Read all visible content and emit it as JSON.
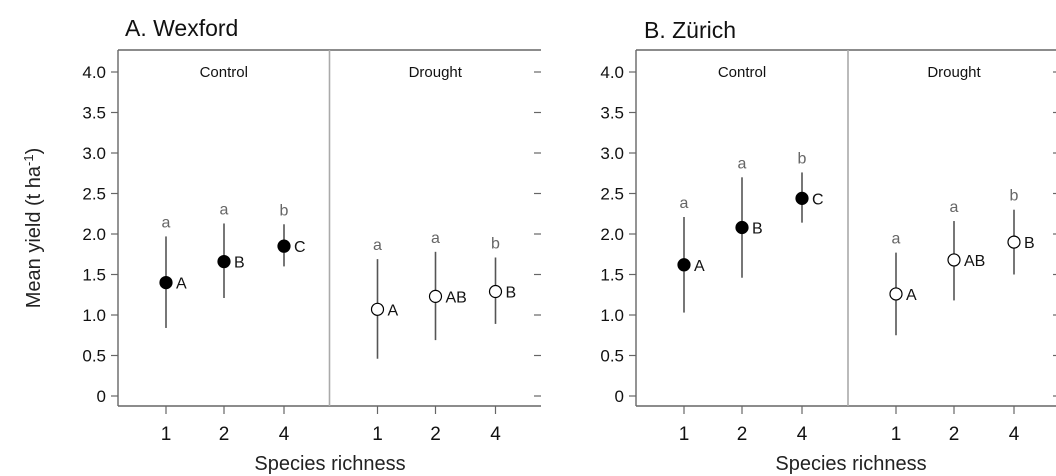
{
  "chart_data": [
    {
      "type": "scatter",
      "title": "A. Wexford",
      "ylabel": "Mean yield (t ha-1)",
      "ylabel_parts": [
        "Mean yield (t ha",
        "-1",
        ")"
      ],
      "xlabel": "Species richness",
      "ylim": [
        0,
        4.0
      ],
      "yticks": [
        "0",
        "0.5",
        "1.0",
        "1.5",
        "2.0",
        "2.5",
        "3.0",
        "3.5",
        "4.0"
      ],
      "facets": [
        {
          "label": "Control",
          "marker": "filled",
          "x": [
            "1",
            "2",
            "4"
          ],
          "values": [
            1.4,
            1.66,
            1.85
          ],
          "error_low": [
            0.84,
            1.21,
            1.6
          ],
          "error_high": [
            1.97,
            2.13,
            2.12
          ],
          "letters_lower": [
            "a",
            "a",
            "b"
          ],
          "letters_upper": [
            "A",
            "B",
            "C"
          ]
        },
        {
          "label": "Drought",
          "marker": "open",
          "x": [
            "1",
            "2",
            "4"
          ],
          "values": [
            1.07,
            1.23,
            1.29
          ],
          "error_low": [
            0.46,
            0.69,
            0.89
          ],
          "error_high": [
            1.69,
            1.78,
            1.71
          ],
          "letters_lower": [
            "a",
            "a",
            "b"
          ],
          "letters_upper": [
            "A",
            "AB",
            "B"
          ]
        }
      ]
    },
    {
      "type": "scatter",
      "title": "B. Zürich",
      "xlabel": "Species richness",
      "ylim": [
        0,
        4.0
      ],
      "yticks": [
        "0",
        "0.5",
        "1.0",
        "1.5",
        "2.0",
        "2.5",
        "3.0",
        "3.5",
        "4.0"
      ],
      "facets": [
        {
          "label": "Control",
          "marker": "filled",
          "x": [
            "1",
            "2",
            "4"
          ],
          "values": [
            1.62,
            2.08,
            2.44
          ],
          "error_low": [
            1.03,
            1.46,
            2.14
          ],
          "error_high": [
            2.21,
            2.7,
            2.76
          ],
          "letters_lower": [
            "a",
            "a",
            "b"
          ],
          "letters_upper": [
            "A",
            "B",
            "C"
          ]
        },
        {
          "label": "Drought",
          "marker": "open",
          "x": [
            "1",
            "2",
            "4"
          ],
          "values": [
            1.26,
            1.68,
            1.9
          ],
          "error_low": [
            0.75,
            1.18,
            1.5
          ],
          "error_high": [
            1.77,
            2.16,
            2.3
          ],
          "letters_lower": [
            "a",
            "a",
            "b"
          ],
          "letters_upper": [
            "A",
            "AB",
            "B"
          ]
        }
      ]
    }
  ]
}
